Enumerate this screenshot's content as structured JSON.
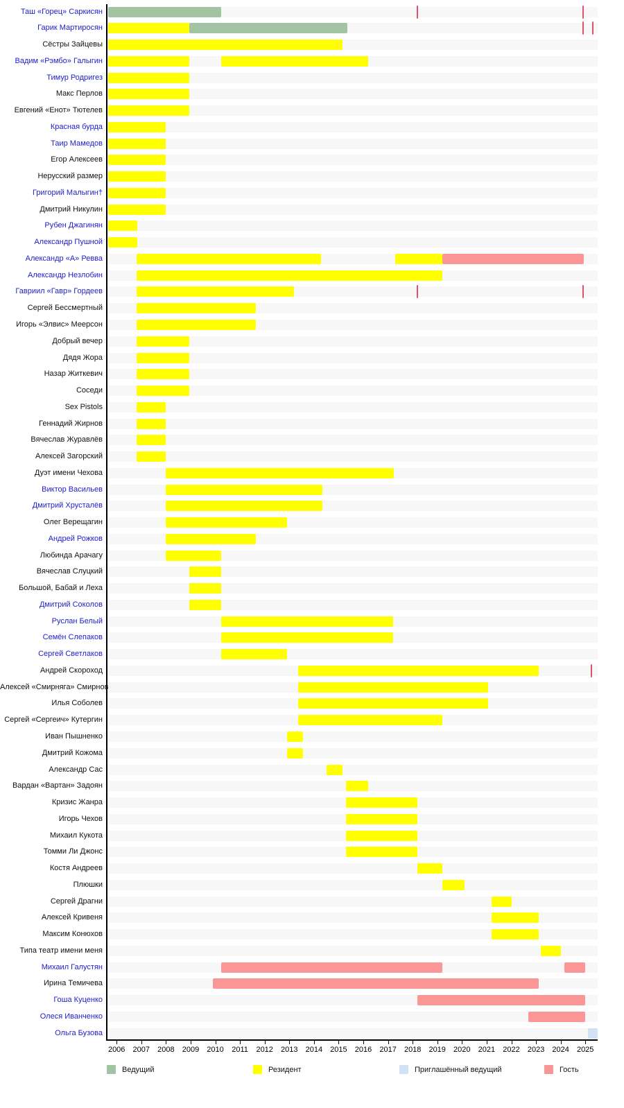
{
  "chart_data": {
    "type": "timeline-gantt",
    "description": "Participants timeline (hosts, residents, invited hosts, guests) 2006-2025",
    "x_axis": {
      "min": 2005.6,
      "max": 2025.5,
      "ticks": [
        2006,
        2007,
        2008,
        2009,
        2010,
        2011,
        2012,
        2013,
        2014,
        2015,
        2016,
        2017,
        2018,
        2019,
        2020,
        2021,
        2022,
        2023,
        2024,
        2025
      ]
    },
    "legend": [
      {
        "key": "host",
        "label": "Ведущий",
        "color": "#a2c4a2"
      },
      {
        "key": "resident",
        "label": "Резидент",
        "color": "#ffff00"
      },
      {
        "key": "invited_host",
        "label": "Приглашённый ведущий",
        "color": "#d2e1f5"
      },
      {
        "key": "guest",
        "label": "Гость",
        "color": "#fa9696"
      }
    ],
    "tick_marker_color": "#e15069",
    "rows": [
      {
        "name": "Таш «Горец» Саркисян",
        "link": true,
        "segments": [
          {
            "type": "host",
            "start": 2005.65,
            "end": 2010.25
          }
        ],
        "ticks": [
          2018.2,
          2024.9
        ]
      },
      {
        "name": "Гарик Мартиросян",
        "link": true,
        "segments": [
          {
            "type": "resident",
            "start": 2005.65,
            "end": 2008.95
          },
          {
            "type": "host",
            "start": 2008.95,
            "end": 2015.35
          }
        ],
        "ticks": [
          2024.9,
          2025.3
        ]
      },
      {
        "name": "Сёстры Зайцевы",
        "link": false,
        "segments": [
          {
            "type": "resident",
            "start": 2005.65,
            "end": 2015.15
          }
        ],
        "ticks": []
      },
      {
        "name": "Вадим «Рэмбо» Галыгин",
        "link": true,
        "segments": [
          {
            "type": "resident",
            "start": 2005.65,
            "end": 2008.95
          },
          {
            "type": "resident",
            "start": 2010.25,
            "end": 2016.2
          }
        ],
        "ticks": []
      },
      {
        "name": "Тимур Родригез",
        "link": true,
        "segments": [
          {
            "type": "resident",
            "start": 2005.65,
            "end": 2008.95
          }
        ],
        "ticks": []
      },
      {
        "name": "Макс Перлов",
        "link": false,
        "segments": [
          {
            "type": "resident",
            "start": 2005.65,
            "end": 2008.95
          }
        ],
        "ticks": []
      },
      {
        "name": "Евгений «Енот» Тютелев",
        "link": false,
        "segments": [
          {
            "type": "resident",
            "start": 2005.65,
            "end": 2008.95
          }
        ],
        "ticks": []
      },
      {
        "name": "Красная бурда",
        "link": true,
        "segments": [
          {
            "type": "resident",
            "start": 2005.65,
            "end": 2008.0
          }
        ],
        "ticks": []
      },
      {
        "name": "Таир Мамедов",
        "link": true,
        "segments": [
          {
            "type": "resident",
            "start": 2005.65,
            "end": 2008.0
          }
        ],
        "ticks": []
      },
      {
        "name": "Егор Алексеев",
        "link": false,
        "segments": [
          {
            "type": "resident",
            "start": 2005.65,
            "end": 2008.0
          }
        ],
        "ticks": []
      },
      {
        "name": "Нерусский размер",
        "link": false,
        "segments": [
          {
            "type": "resident",
            "start": 2005.65,
            "end": 2008.0
          }
        ],
        "ticks": []
      },
      {
        "name": "Григорий Малыгин†",
        "link": true,
        "segments": [
          {
            "type": "resident",
            "start": 2005.65,
            "end": 2008.0
          }
        ],
        "ticks": []
      },
      {
        "name": "Дмитрий Никулин",
        "link": false,
        "segments": [
          {
            "type": "resident",
            "start": 2005.65,
            "end": 2008.0
          }
        ],
        "ticks": []
      },
      {
        "name": "Рубен Джагинян",
        "link": true,
        "segments": [
          {
            "type": "resident",
            "start": 2005.65,
            "end": 2006.85
          }
        ],
        "ticks": []
      },
      {
        "name": "Александр Пушной",
        "link": true,
        "segments": [
          {
            "type": "resident",
            "start": 2005.65,
            "end": 2006.85
          }
        ],
        "ticks": []
      },
      {
        "name": "Александр «А» Ревва",
        "link": true,
        "segments": [
          {
            "type": "resident",
            "start": 2006.8,
            "end": 2014.3
          },
          {
            "type": "resident",
            "start": 2017.3,
            "end": 2019.2
          },
          {
            "type": "guest",
            "start": 2019.2,
            "end": 2024.95
          }
        ],
        "ticks": []
      },
      {
        "name": "Александр Незлобин",
        "link": true,
        "segments": [
          {
            "type": "resident",
            "start": 2006.8,
            "end": 2019.2
          }
        ],
        "ticks": []
      },
      {
        "name": "Гавриил «Гавр» Гордеев",
        "link": true,
        "segments": [
          {
            "type": "resident",
            "start": 2006.8,
            "end": 2013.2
          }
        ],
        "ticks": [
          2018.2,
          2024.9
        ]
      },
      {
        "name": "Сергей Бессмертный",
        "link": false,
        "segments": [
          {
            "type": "resident",
            "start": 2006.8,
            "end": 2011.65
          }
        ],
        "ticks": []
      },
      {
        "name": "Игорь «Элвис» Меерсон",
        "link": false,
        "segments": [
          {
            "type": "resident",
            "start": 2006.8,
            "end": 2011.65
          }
        ],
        "ticks": []
      },
      {
        "name": "Добрый вечер",
        "link": false,
        "segments": [
          {
            "type": "resident",
            "start": 2006.8,
            "end": 2008.95
          }
        ],
        "ticks": []
      },
      {
        "name": "Дядя Жора",
        "link": false,
        "segments": [
          {
            "type": "resident",
            "start": 2006.8,
            "end": 2008.95
          }
        ],
        "ticks": []
      },
      {
        "name": "Назар Житкевич",
        "link": false,
        "segments": [
          {
            "type": "resident",
            "start": 2006.8,
            "end": 2008.95
          }
        ],
        "ticks": []
      },
      {
        "name": "Соседи",
        "link": false,
        "segments": [
          {
            "type": "resident",
            "start": 2006.8,
            "end": 2008.95
          }
        ],
        "ticks": []
      },
      {
        "name": "Sex Pistols",
        "link": false,
        "segments": [
          {
            "type": "resident",
            "start": 2006.8,
            "end": 2008.0
          }
        ],
        "ticks": []
      },
      {
        "name": "Геннадий Жирнов",
        "link": false,
        "segments": [
          {
            "type": "resident",
            "start": 2006.8,
            "end": 2008.0
          }
        ],
        "ticks": []
      },
      {
        "name": "Вячеслав Журавлёв",
        "link": false,
        "segments": [
          {
            "type": "resident",
            "start": 2006.8,
            "end": 2008.0
          }
        ],
        "ticks": []
      },
      {
        "name": "Алексей Загорский",
        "link": false,
        "segments": [
          {
            "type": "resident",
            "start": 2006.8,
            "end": 2008.0
          }
        ],
        "ticks": []
      },
      {
        "name": "Дуэт имени Чехова",
        "link": false,
        "segments": [
          {
            "type": "resident",
            "start": 2008.0,
            "end": 2017.25
          }
        ],
        "ticks": []
      },
      {
        "name": "Виктор Васильев",
        "link": true,
        "segments": [
          {
            "type": "resident",
            "start": 2008.0,
            "end": 2014.35
          }
        ],
        "ticks": []
      },
      {
        "name": "Дмитрий Хрусталёв",
        "link": true,
        "segments": [
          {
            "type": "resident",
            "start": 2008.0,
            "end": 2014.35
          }
        ],
        "ticks": []
      },
      {
        "name": "Олег Верещагин",
        "link": false,
        "segments": [
          {
            "type": "resident",
            "start": 2008.0,
            "end": 2012.9
          }
        ],
        "ticks": []
      },
      {
        "name": "Андрей Рожков",
        "link": true,
        "segments": [
          {
            "type": "resident",
            "start": 2008.0,
            "end": 2011.65
          }
        ],
        "ticks": []
      },
      {
        "name": "Любинда Арачагу",
        "link": false,
        "segments": [
          {
            "type": "resident",
            "start": 2008.0,
            "end": 2010.25
          }
        ],
        "ticks": []
      },
      {
        "name": "Вячеслав Слуцкий",
        "link": false,
        "segments": [
          {
            "type": "resident",
            "start": 2008.95,
            "end": 2010.25
          }
        ],
        "ticks": []
      },
      {
        "name": "Большой, Бабай и Леха",
        "link": false,
        "segments": [
          {
            "type": "resident",
            "start": 2008.95,
            "end": 2010.25
          }
        ],
        "ticks": []
      },
      {
        "name": "Дмитрий Соколов",
        "link": true,
        "segments": [
          {
            "type": "resident",
            "start": 2008.95,
            "end": 2010.25
          }
        ],
        "ticks": []
      },
      {
        "name": "Руслан Белый",
        "link": true,
        "segments": [
          {
            "type": "resident",
            "start": 2010.25,
            "end": 2017.2
          }
        ],
        "ticks": []
      },
      {
        "name": "Семён Слепаков",
        "link": true,
        "segments": [
          {
            "type": "resident",
            "start": 2010.25,
            "end": 2017.2
          }
        ],
        "ticks": []
      },
      {
        "name": "Сергей Светлаков",
        "link": true,
        "segments": [
          {
            "type": "resident",
            "start": 2010.25,
            "end": 2012.9
          }
        ],
        "ticks": []
      },
      {
        "name": "Андрей Скороход",
        "link": false,
        "segments": [
          {
            "type": "resident",
            "start": 2013.35,
            "end": 2023.1
          }
        ],
        "ticks": [
          2025.25
        ]
      },
      {
        "name": "Алексей «Смирняга» Смирнов",
        "link": false,
        "segments": [
          {
            "type": "resident",
            "start": 2013.35,
            "end": 2021.05
          }
        ],
        "ticks": []
      },
      {
        "name": "Илья Соболев",
        "link": false,
        "segments": [
          {
            "type": "resident",
            "start": 2013.35,
            "end": 2021.05
          }
        ],
        "ticks": []
      },
      {
        "name": "Сергей «Сергеич» Кутергин",
        "link": false,
        "segments": [
          {
            "type": "resident",
            "start": 2013.35,
            "end": 2019.2
          }
        ],
        "ticks": []
      },
      {
        "name": "Иван Пышненко",
        "link": false,
        "segments": [
          {
            "type": "resident",
            "start": 2012.9,
            "end": 2013.55
          }
        ],
        "ticks": []
      },
      {
        "name": "Дмитрий Кожома",
        "link": false,
        "segments": [
          {
            "type": "resident",
            "start": 2012.9,
            "end": 2013.55
          }
        ],
        "ticks": []
      },
      {
        "name": "Александр Сас",
        "link": false,
        "segments": [
          {
            "type": "resident",
            "start": 2014.5,
            "end": 2015.15
          }
        ],
        "ticks": []
      },
      {
        "name": "Вардан «Вартан» Задоян",
        "link": false,
        "segments": [
          {
            "type": "resident",
            "start": 2015.3,
            "end": 2016.2
          }
        ],
        "ticks": []
      },
      {
        "name": "Кризис Жанра",
        "link": false,
        "segments": [
          {
            "type": "resident",
            "start": 2015.3,
            "end": 2018.2
          }
        ],
        "ticks": []
      },
      {
        "name": "Игорь Чехов",
        "link": false,
        "segments": [
          {
            "type": "resident",
            "start": 2015.3,
            "end": 2018.2
          }
        ],
        "ticks": []
      },
      {
        "name": "Михаил Кукота",
        "link": false,
        "segments": [
          {
            "type": "resident",
            "start": 2015.3,
            "end": 2018.2
          }
        ],
        "ticks": []
      },
      {
        "name": "Томми Ли Джонс",
        "link": false,
        "segments": [
          {
            "type": "resident",
            "start": 2015.3,
            "end": 2018.2
          }
        ],
        "ticks": []
      },
      {
        "name": "Костя Андреев",
        "link": false,
        "segments": [
          {
            "type": "resident",
            "start": 2018.2,
            "end": 2019.2
          }
        ],
        "ticks": []
      },
      {
        "name": "Плюшки",
        "link": false,
        "segments": [
          {
            "type": "resident",
            "start": 2019.2,
            "end": 2020.1
          }
        ],
        "ticks": []
      },
      {
        "name": "Сергей Драгни",
        "link": false,
        "segments": [
          {
            "type": "resident",
            "start": 2021.2,
            "end": 2022.0
          }
        ],
        "ticks": []
      },
      {
        "name": "Алексей Кривеня",
        "link": false,
        "segments": [
          {
            "type": "resident",
            "start": 2021.2,
            "end": 2023.1
          }
        ],
        "ticks": []
      },
      {
        "name": "Максим Конюхов",
        "link": false,
        "segments": [
          {
            "type": "resident",
            "start": 2021.2,
            "end": 2023.1
          }
        ],
        "ticks": []
      },
      {
        "name": "Типа театр имени меня",
        "link": false,
        "segments": [
          {
            "type": "resident",
            "start": 2023.2,
            "end": 2024.0
          }
        ],
        "ticks": []
      },
      {
        "name": "Михаил Галустян",
        "link": true,
        "segments": [
          {
            "type": "guest",
            "start": 2010.25,
            "end": 2019.2
          },
          {
            "type": "guest",
            "start": 2024.15,
            "end": 2025.0
          }
        ],
        "ticks": []
      },
      {
        "name": "Ирина Темичева",
        "link": false,
        "segments": [
          {
            "type": "guest",
            "start": 2009.9,
            "end": 2023.1
          }
        ],
        "ticks": []
      },
      {
        "name": "Гоша Куценко",
        "link": true,
        "segments": [
          {
            "type": "guest",
            "start": 2018.2,
            "end": 2025.0
          }
        ],
        "ticks": []
      },
      {
        "name": "Олеся Иванченко",
        "link": true,
        "segments": [
          {
            "type": "guest",
            "start": 2022.7,
            "end": 2025.0
          }
        ],
        "ticks": []
      },
      {
        "name": "Ольга Бузова",
        "link": true,
        "segments": [
          {
            "type": "invited_host",
            "start": 2025.1,
            "end": 2025.5
          }
        ],
        "ticks": []
      }
    ]
  }
}
